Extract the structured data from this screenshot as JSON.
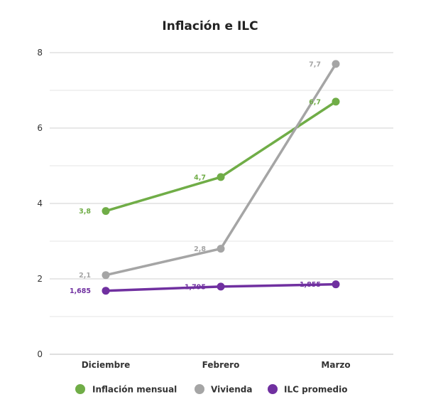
{
  "chart_data": {
    "type": "line",
    "title": "Inflación e ILC",
    "categories": [
      "Diciembre",
      "Febrero",
      "Marzo"
    ],
    "ylim": [
      0,
      8
    ],
    "yticks": [
      0,
      2,
      4,
      6,
      8
    ],
    "grid": true,
    "legend_position": "bottom",
    "series": [
      {
        "name": "Inflación mensual",
        "color": "#70ad47",
        "values": [
          3.8,
          4.7,
          6.7
        ],
        "labels": [
          "3,8",
          "4,7",
          "6,7"
        ]
      },
      {
        "name": "Vivienda",
        "color": "#a5a5a5",
        "values": [
          2.1,
          2.8,
          7.7
        ],
        "labels": [
          "2,1",
          "2,8",
          "7,7"
        ]
      },
      {
        "name": "ILC promedio",
        "color": "#7030a0",
        "values": [
          1.685,
          1.795,
          1.855
        ],
        "labels": [
          "1,685",
          "1,795",
          "1,855"
        ]
      }
    ]
  }
}
